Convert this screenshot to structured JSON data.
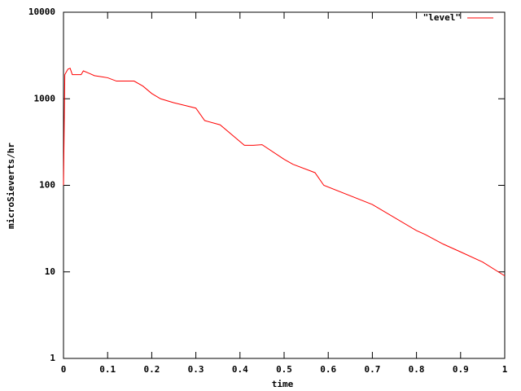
{
  "chart_data": {
    "type": "line",
    "x": [
      0,
      0.003,
      0.01,
      0.015,
      0.02,
      0.04,
      0.045,
      0.06,
      0.07,
      0.1,
      0.12,
      0.16,
      0.18,
      0.2,
      0.22,
      0.25,
      0.3,
      0.32,
      0.355,
      0.41,
      0.43,
      0.45,
      0.5,
      0.52,
      0.57,
      0.59,
      0.7,
      0.8,
      0.82,
      0.86,
      0.9,
      0.95,
      1
    ],
    "series": [
      {
        "name": "\"level\"",
        "color": "#ff0000",
        "values": [
          100,
          1900,
          2200,
          2250,
          1900,
          1900,
          2100,
          1950,
          1850,
          1750,
          1600,
          1600,
          1400,
          1150,
          1000,
          900,
          780,
          560,
          500,
          290,
          290,
          295,
          200,
          175,
          140,
          100,
          60,
          30,
          27,
          21,
          17,
          13,
          9
        ]
      }
    ],
    "xlabel": "time",
    "ylabel": "microSieverts/hr",
    "xlim": [
      0,
      1
    ],
    "xticks": [
      0,
      0.1,
      0.2,
      0.3,
      0.4,
      0.5,
      0.6,
      0.7,
      0.8,
      0.9,
      1
    ],
    "ylim": [
      1,
      10000
    ],
    "yticks": [
      1,
      10,
      100,
      1000,
      10000
    ],
    "log_y": true,
    "grid": false,
    "legend": "top-right"
  }
}
